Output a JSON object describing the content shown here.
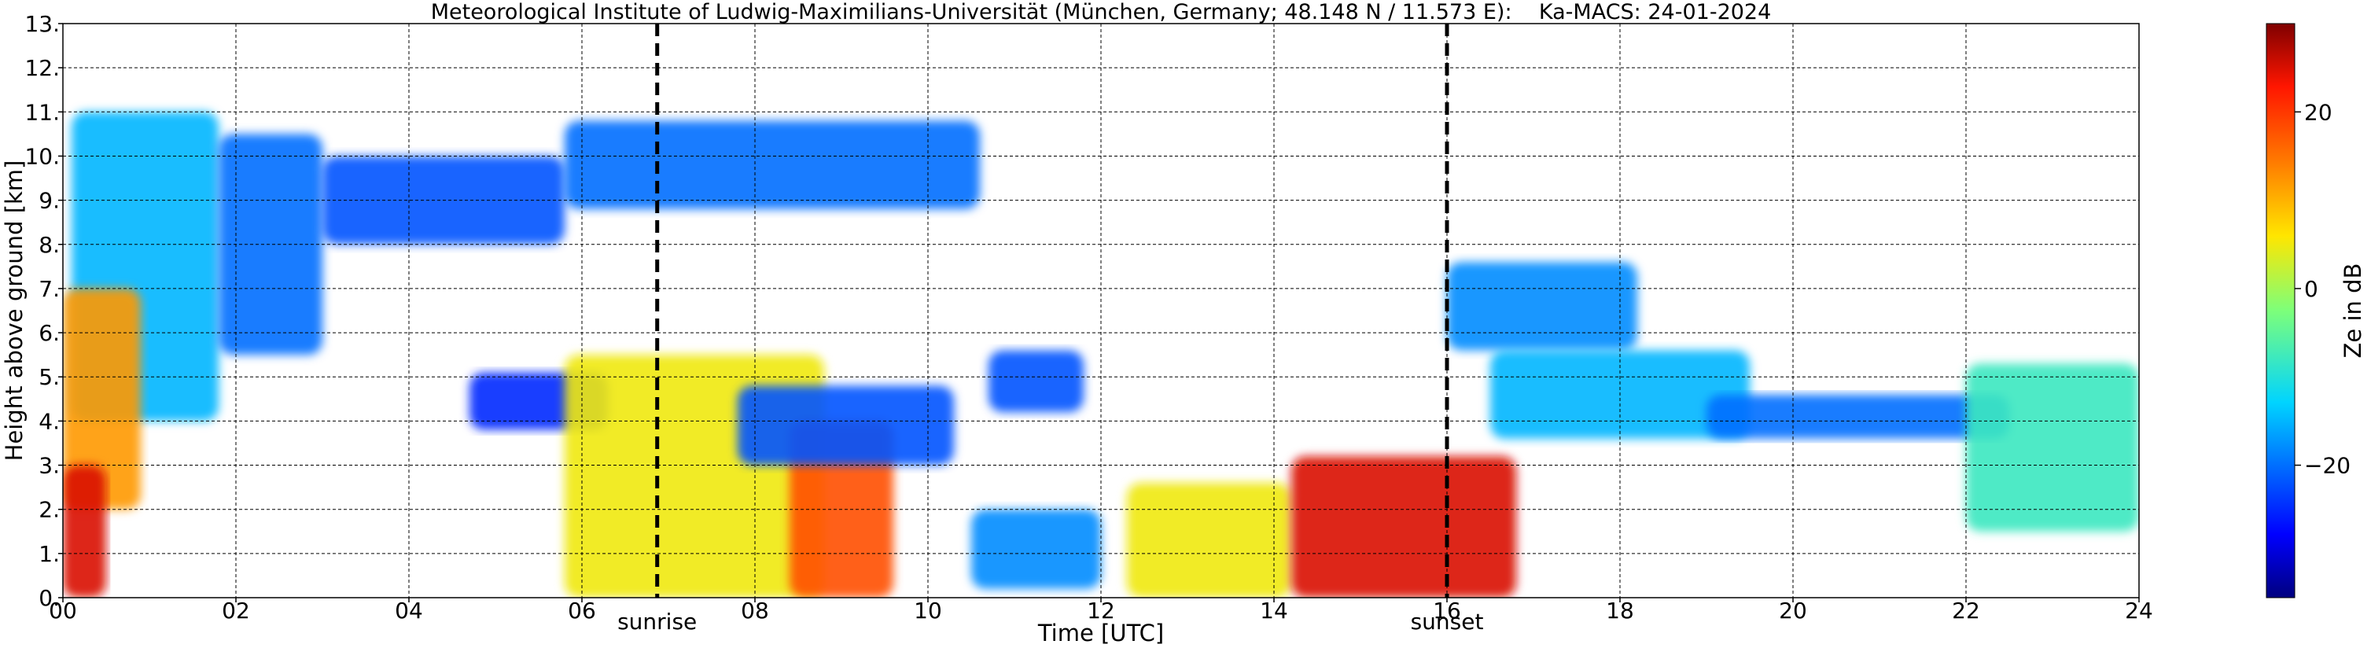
{
  "chart_data": {
    "type": "heatmap",
    "title": "Meteorological Institute of Ludwig-Maximilians-Universität (München, Germany; 48.148 N / 11.573 E):    Ka-MACS: 24-01-2024",
    "xlabel": "Time [UTC]",
    "ylabel": "Height above ground [km]",
    "xlim": [
      0,
      24
    ],
    "ylim": [
      0,
      13
    ],
    "grid": true,
    "x_tick_labels": [
      "00",
      "02",
      "04",
      "06",
      "08",
      "10",
      "12",
      "14",
      "16",
      "18",
      "20",
      "22",
      "24"
    ],
    "y_tick_labels": [
      "0.",
      "1.",
      "2.",
      "3.",
      "4.",
      "5.",
      "6.",
      "7.",
      "8.",
      "9.",
      "10.",
      "11.",
      "12.",
      "13."
    ],
    "markers": [
      {
        "label": "sunrise",
        "x": 6.87
      },
      {
        "label": "sunset",
        "x": 16.0
      }
    ],
    "colorbar": {
      "label": "Ze in dB",
      "range": [
        -35,
        30
      ],
      "tick_labels": [
        "20",
        "0",
        "−20"
      ],
      "tick_values": [
        20,
        0,
        -20
      ],
      "colormap": "jet"
    },
    "echo_regions": [
      {
        "t0": 0.1,
        "t1": 1.8,
        "h0": 4.0,
        "h1": 11.0,
        "ze": -15
      },
      {
        "t0": 0.0,
        "t1": 0.9,
        "h0": 2.0,
        "h1": 7.0,
        "ze": 12
      },
      {
        "t0": 0.0,
        "t1": 0.5,
        "h0": 0.0,
        "h1": 3.0,
        "ze": 25
      },
      {
        "t0": 1.8,
        "t1": 3.0,
        "h0": 5.5,
        "h1": 10.5,
        "ze": -20
      },
      {
        "t0": 3.0,
        "t1": 5.8,
        "h0": 8.0,
        "h1": 10.0,
        "ze": -22
      },
      {
        "t0": 5.8,
        "t1": 10.6,
        "h0": 8.8,
        "h1": 10.8,
        "ze": -20
      },
      {
        "t0": 4.7,
        "t1": 6.3,
        "h0": 3.8,
        "h1": 5.1,
        "ze": -25
      },
      {
        "t0": 5.8,
        "t1": 8.8,
        "h0": 0.0,
        "h1": 5.5,
        "ze": 5
      },
      {
        "t0": 8.4,
        "t1": 9.6,
        "h0": 0.0,
        "h1": 4.0,
        "ze": 18
      },
      {
        "t0": 7.8,
        "t1": 10.3,
        "h0": 3.0,
        "h1": 4.8,
        "ze": -22
      },
      {
        "t0": 10.5,
        "t1": 12.0,
        "h0": 0.2,
        "h1": 2.0,
        "ze": -18
      },
      {
        "t0": 10.7,
        "t1": 11.8,
        "h0": 4.2,
        "h1": 5.6,
        "ze": -22
      },
      {
        "t0": 12.3,
        "t1": 14.2,
        "h0": 0.0,
        "h1": 2.6,
        "ze": 5
      },
      {
        "t0": 14.2,
        "t1": 16.8,
        "h0": 0.0,
        "h1": 3.2,
        "ze": 25
      },
      {
        "t0": 16.0,
        "t1": 18.2,
        "h0": 5.6,
        "h1": 7.6,
        "ze": -18
      },
      {
        "t0": 16.5,
        "t1": 19.5,
        "h0": 3.6,
        "h1": 5.6,
        "ze": -15
      },
      {
        "t0": 19.0,
        "t1": 22.5,
        "h0": 3.6,
        "h1": 4.6,
        "ze": -20
      },
      {
        "t0": 22.0,
        "t1": 24.0,
        "h0": 1.5,
        "h1": 5.3,
        "ze": -8
      }
    ]
  }
}
